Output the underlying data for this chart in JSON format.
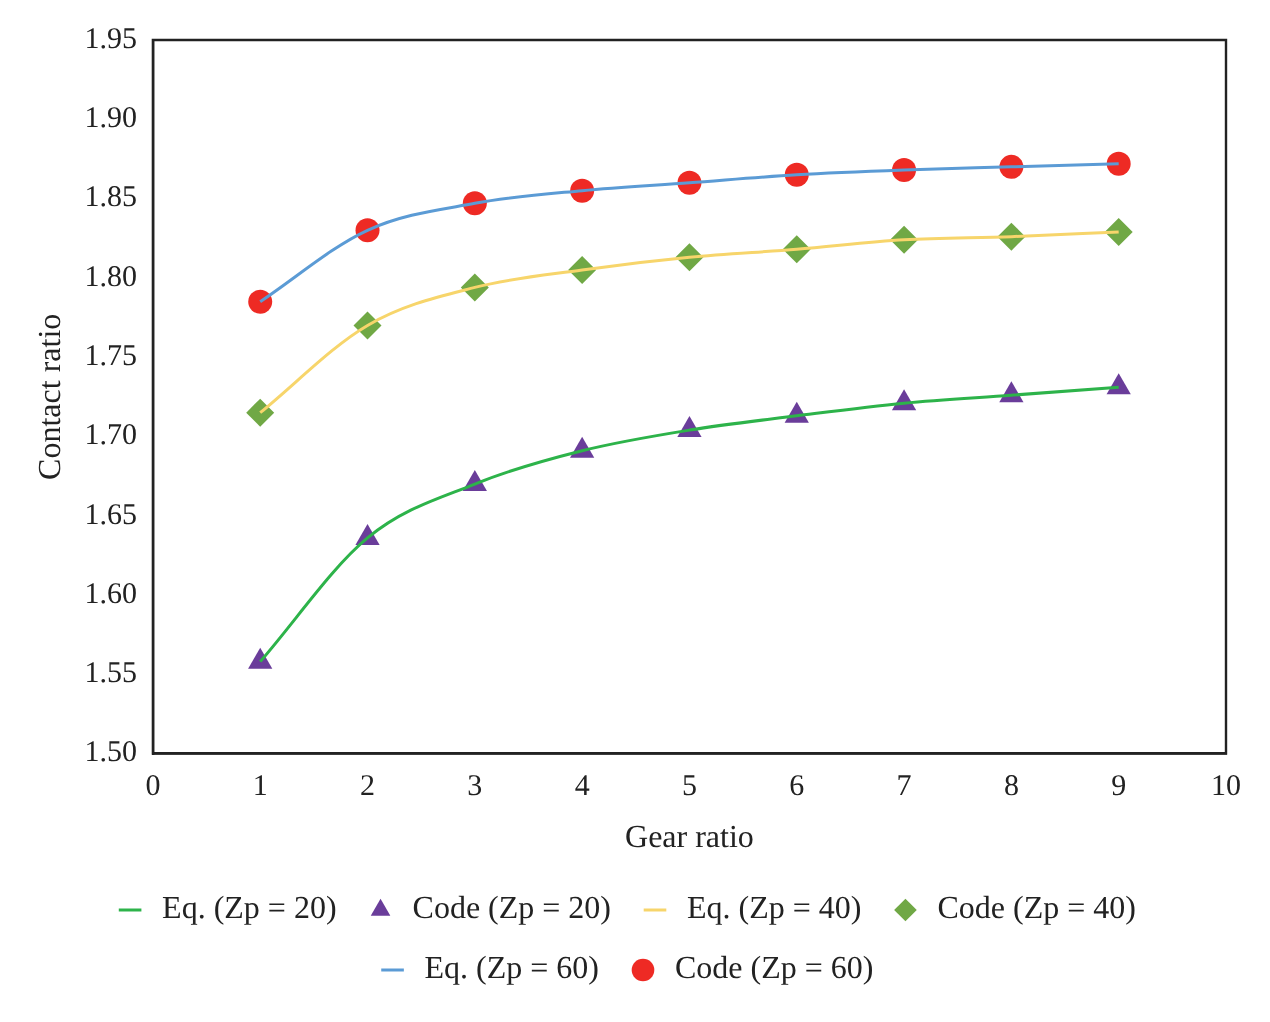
{
  "chart_data": {
    "type": "line",
    "xlabel": "Gear ratio",
    "ylabel": "Contact ratio",
    "x": [
      1,
      2,
      3,
      4,
      5,
      6,
      7,
      8,
      9
    ],
    "series": [
      {
        "name": "Eq. (Zp = 20)",
        "type": "line",
        "marker": "none",
        "color": "#2db34a",
        "values": [
          1.558,
          1.636,
          1.67,
          1.691,
          1.704,
          1.713,
          1.721,
          1.726,
          1.731
        ]
      },
      {
        "name": "Code (Zp = 20)",
        "type": "scatter",
        "marker": "triangle",
        "color": "#6a3d9a",
        "values": [
          1.558,
          1.636,
          1.67,
          1.691,
          1.704,
          1.713,
          1.721,
          1.726,
          1.731
        ]
      },
      {
        "name": "Eq. (Zp = 40)",
        "type": "line",
        "marker": "none",
        "color": "#f7d56b",
        "values": [
          1.715,
          1.77,
          1.794,
          1.805,
          1.813,
          1.818,
          1.824,
          1.826,
          1.829
        ]
      },
      {
        "name": "Code (Zp = 40)",
        "type": "scatter",
        "marker": "diamond",
        "color": "#70a845",
        "values": [
          1.715,
          1.77,
          1.794,
          1.805,
          1.813,
          1.818,
          1.824,
          1.826,
          1.829
        ]
      },
      {
        "name": "Eq. (Zp = 60)",
        "type": "line",
        "marker": "none",
        "color": "#5b9bd5",
        "values": [
          1.785,
          1.83,
          1.847,
          1.855,
          1.86,
          1.865,
          1.868,
          1.87,
          1.872
        ]
      },
      {
        "name": "Code (Zp = 60)",
        "type": "scatter",
        "marker": "circle",
        "color": "#ee2a24",
        "values": [
          1.785,
          1.83,
          1.847,
          1.855,
          1.86,
          1.865,
          1.868,
          1.87,
          1.872
        ]
      }
    ],
    "xlim": [
      0,
      10
    ],
    "xticks": [
      0,
      1,
      2,
      3,
      4,
      5,
      6,
      7,
      8,
      9,
      10
    ],
    "ylim": [
      1.5,
      1.95
    ],
    "yticks": [
      {
        "value": 1.5,
        "label": "1.50"
      },
      {
        "value": 1.55,
        "label": "1.55"
      },
      {
        "value": 1.6,
        "label": "1.60"
      },
      {
        "value": 1.65,
        "label": "1.65"
      },
      {
        "value": 1.7,
        "label": "1.70"
      },
      {
        "value": 1.75,
        "label": "1.75"
      },
      {
        "value": 1.8,
        "label": "1.80"
      },
      {
        "value": 1.85,
        "label": "1.85"
      },
      {
        "value": 1.9,
        "label": "1.90"
      },
      {
        "value": 1.95,
        "label": "1.95"
      }
    ],
    "grid": false,
    "legend": "bottom"
  }
}
